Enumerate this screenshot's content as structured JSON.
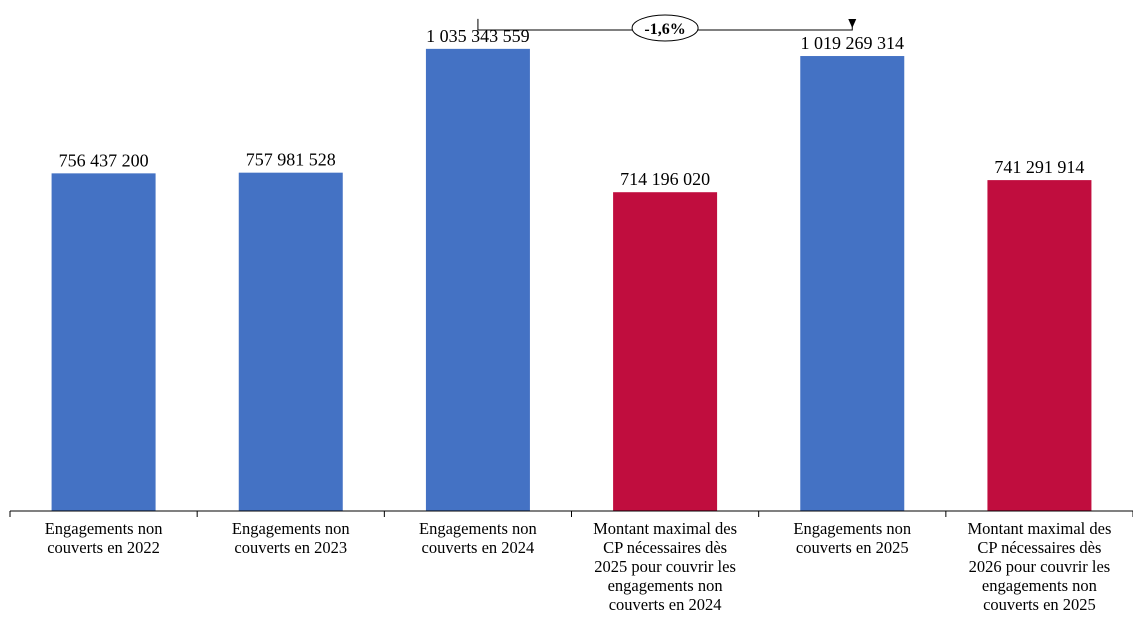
{
  "chart_data": {
    "type": "bar",
    "categories": [
      [
        "Engagements non",
        "couverts en 2022"
      ],
      [
        "Engagements non",
        "couverts en 2023"
      ],
      [
        "Engagements non",
        "couverts en 2024"
      ],
      [
        "Montant maximal des",
        "CP nécessaires dès",
        "2025 pour couvrir les",
        "engagements non",
        "couverts en 2024"
      ],
      [
        "Engagements non",
        "couverts en 2025"
      ],
      [
        "Montant maximal des",
        "CP nécessaires dès",
        "2026 pour couvrir les",
        "engagements non",
        "couverts en 2025"
      ]
    ],
    "values": [
      756437200,
      757981528,
      1035343559,
      714196020,
      1019269314,
      741291914
    ],
    "value_labels": [
      "756 437 200",
      "757 981 528",
      "1 035 343 559",
      "714 196 020",
      "1 019 269 314",
      "741 291 914"
    ],
    "colors": [
      "#4472C4",
      "#4472C4",
      "#4472C4",
      "#C00D3E",
      "#4472C4",
      "#C00D3E"
    ],
    "ylim": [
      0,
      1100000000
    ],
    "grid": false,
    "annotation": {
      "label": "-1,6%",
      "from_index": 2,
      "to_index": 4
    }
  }
}
